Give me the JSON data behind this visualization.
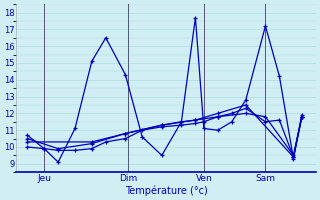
{
  "title": "",
  "xlabel": "Température (°c)",
  "ylabel": "",
  "bg_color": "#d0eef4",
  "grid_color": "#aadddd",
  "line_color": "#0000bb",
  "ylim": [
    8.5,
    18.5
  ],
  "yticks": [
    9,
    10,
    11,
    12,
    13,
    14,
    15,
    16,
    17,
    18
  ],
  "day_positions": [
    0.08,
    0.38,
    0.65,
    0.87
  ],
  "day_labels": [
    "Jeu",
    "Dim",
    "Ven",
    "Sam"
  ],
  "series1_x": [
    0.02,
    0.08,
    0.13,
    0.19,
    0.25,
    0.3,
    0.37,
    0.43,
    0.5,
    0.57,
    0.62,
    0.65,
    0.7,
    0.75,
    0.8,
    0.87,
    0.92,
    0.97,
    1.0
  ],
  "series1_y": [
    10.7,
    9.9,
    9.1,
    11.1,
    15.1,
    16.5,
    14.3,
    10.6,
    9.5,
    11.5,
    17.7,
    11.1,
    11.0,
    11.5,
    12.8,
    17.2,
    14.2,
    9.3,
    11.8
  ],
  "series2_x": [
    0.02,
    0.08,
    0.13,
    0.19,
    0.25,
    0.3,
    0.37,
    0.43,
    0.5,
    0.57,
    0.62,
    0.65,
    0.7,
    0.75,
    0.8,
    0.87,
    0.92,
    0.97,
    1.0
  ],
  "series2_y": [
    10.0,
    9.9,
    9.8,
    9.8,
    9.9,
    10.3,
    10.5,
    11.0,
    11.2,
    11.3,
    11.4,
    11.5,
    11.8,
    12.0,
    12.3,
    11.5,
    11.6,
    9.4,
    11.8
  ],
  "series3_x": [
    0.02,
    0.13,
    0.25,
    0.37,
    0.5,
    0.57,
    0.62,
    0.7,
    0.8,
    0.87,
    0.97,
    1.0
  ],
  "series3_y": [
    10.5,
    9.9,
    10.2,
    10.8,
    11.3,
    11.5,
    11.6,
    11.8,
    12.0,
    11.8,
    9.5,
    11.8
  ],
  "series4_x": [
    0.02,
    0.25,
    0.37,
    0.5,
    0.62,
    0.7,
    0.8,
    0.97,
    1.0
  ],
  "series4_y": [
    10.3,
    10.3,
    10.8,
    11.3,
    11.6,
    12.0,
    12.5,
    9.4,
    11.9
  ]
}
